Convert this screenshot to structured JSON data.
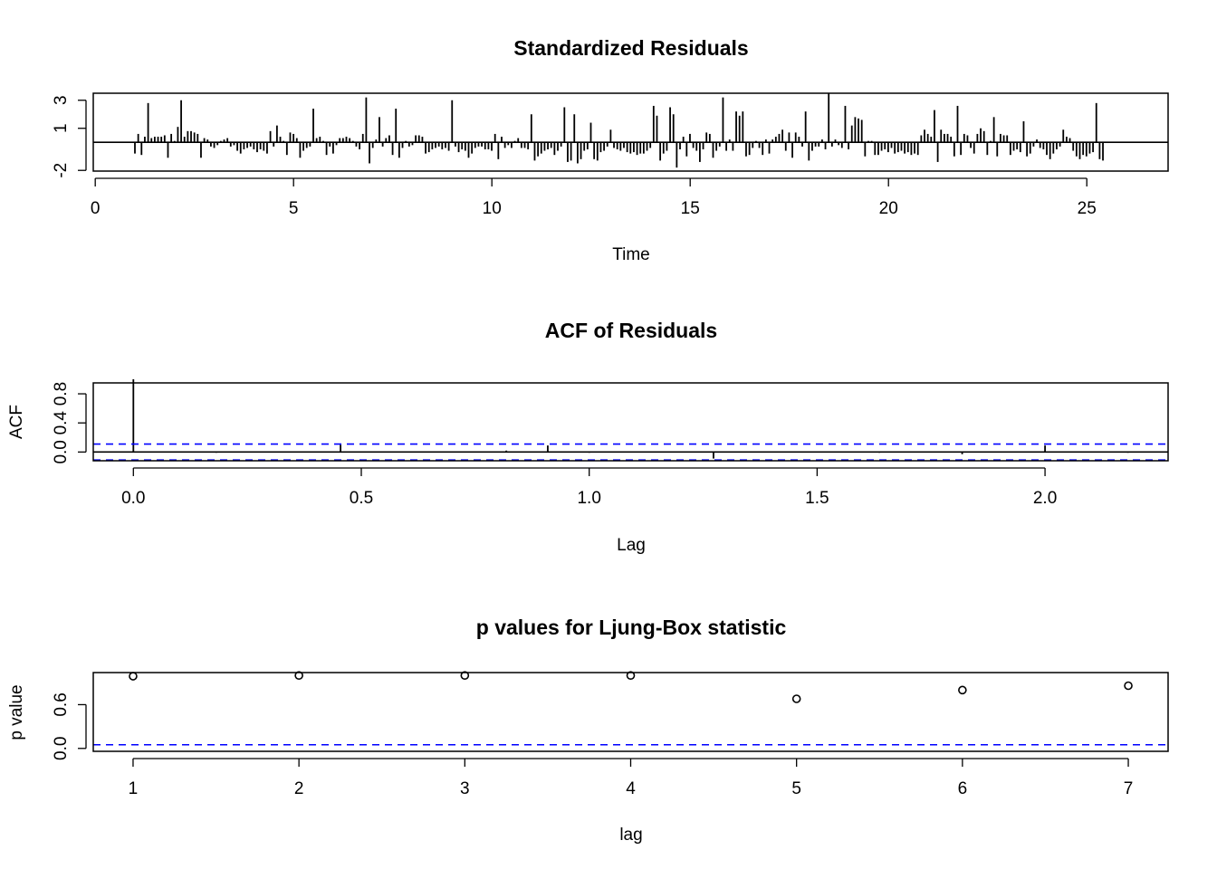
{
  "chart_data": [
    {
      "type": "bar",
      "title": "Standardized Residuals",
      "xlabel": "Time",
      "ylabel": "",
      "xlim": [
        -0.05,
        27.05
      ],
      "ylim": [
        -2.05,
        3.5
      ],
      "x_ticks": [
        0,
        5,
        10,
        15,
        20,
        25
      ],
      "x_tick_labels": [
        "0",
        "5",
        "10",
        "15",
        "20",
        "25"
      ],
      "y_ticks": [
        -2,
        1,
        3
      ],
      "y_tick_labels": [
        "-2",
        "1",
        "3"
      ],
      "baseline": 0,
      "color": "#000000",
      "start": 1.0,
      "step": 0.0833,
      "values": [
        -0.8,
        0.6,
        -0.9,
        0.4,
        2.8,
        0.3,
        0.4,
        0.4,
        0.4,
        0.5,
        -1.1,
        0.6,
        0.1,
        1.1,
        3.0,
        0.4,
        0.8,
        0.8,
        0.7,
        0.6,
        -1.1,
        0.3,
        0.2,
        -0.3,
        -0.4,
        -0.2,
        0.1,
        0.2,
        0.3,
        -0.3,
        -0.2,
        -0.6,
        -0.8,
        -0.5,
        -0.4,
        -0.3,
        -0.5,
        -0.7,
        -0.5,
        -0.6,
        -0.8,
        0.8,
        -0.3,
        1.2,
        0.4,
        0.1,
        -0.9,
        0.7,
        0.6,
        0.3,
        -1.1,
        -0.6,
        -0.4,
        -0.3,
        2.4,
        0.3,
        0.4,
        0.1,
        -0.9,
        -0.3,
        -0.8,
        -0.2,
        0.3,
        0.3,
        0.4,
        0.3,
        0.1,
        -0.3,
        -0.5,
        0.6,
        3.2,
        -1.5,
        -0.4,
        0.2,
        1.8,
        -0.3,
        0.3,
        0.5,
        -0.9,
        2.4,
        -1.1,
        -0.4,
        0.1,
        -0.3,
        -0.2,
        0.5,
        0.5,
        0.4,
        -0.8,
        -0.7,
        -0.5,
        -0.4,
        -0.3,
        -0.5,
        -0.4,
        -0.6,
        3.0,
        -0.3,
        -0.7,
        -0.5,
        -0.6,
        -1.1,
        -0.8,
        -0.4,
        -0.3,
        -0.3,
        -0.5,
        -0.5,
        -0.6,
        0.6,
        -1.2,
        0.4,
        -0.4,
        -0.2,
        -0.4,
        0.1,
        0.3,
        -0.4,
        -0.4,
        -0.5,
        2.0,
        -1.3,
        -1.0,
        -0.8,
        -0.6,
        -0.5,
        -0.4,
        -0.9,
        -0.6,
        -0.3,
        2.5,
        -1.4,
        -1.3,
        2.0,
        -1.5,
        -1.2,
        -0.6,
        -0.5,
        1.4,
        -1.2,
        -1.3,
        -0.7,
        -0.6,
        -0.3,
        0.9,
        -0.4,
        -0.5,
        -0.6,
        -0.4,
        -0.7,
        -0.8,
        -0.7,
        -0.9,
        -0.8,
        -0.8,
        -0.6,
        -0.4,
        2.6,
        1.9,
        -1.3,
        -0.8,
        -0.6,
        2.5,
        2.0,
        -1.8,
        -0.5,
        0.4,
        -1.0,
        0.6,
        -0.4,
        -0.6,
        -1.4,
        -0.5,
        0.7,
        0.6,
        -1.1,
        -0.6,
        -0.3,
        3.2,
        -0.6,
        0.2,
        -0.6,
        2.2,
        1.9,
        2.2,
        -1.0,
        -0.9,
        -0.4,
        0.1,
        -0.4,
        -0.9,
        0.2,
        -0.8,
        0.2,
        0.4,
        0.6,
        0.9,
        -0.6,
        0.7,
        -1.1,
        0.7,
        0.4,
        -0.3,
        2.2,
        -1.3,
        -0.6,
        -0.3,
        -0.3,
        0.2,
        -0.5,
        3.5,
        -0.3,
        0.2,
        -0.2,
        -0.4,
        2.6,
        -0.5,
        1.2,
        1.8,
        1.7,
        1.6,
        -1.0,
        0.1,
        0.1,
        -0.9,
        -0.9,
        -0.6,
        -0.5,
        -0.7,
        -0.4,
        -0.8,
        -0.7,
        -0.6,
        -0.8,
        -0.7,
        -0.9,
        -0.8,
        -0.9,
        0.5,
        0.9,
        0.6,
        0.4,
        2.3,
        -1.4,
        0.9,
        0.6,
        0.6,
        0.4,
        -1.0,
        2.6,
        -0.9,
        0.6,
        0.5,
        -0.4,
        -0.8,
        0.6,
        1.0,
        0.8,
        -0.9,
        0.1,
        1.8,
        -1.0,
        0.6,
        0.5,
        0.5,
        -0.9,
        -0.6,
        -0.5,
        -0.7,
        1.5,
        -1.0,
        -0.8,
        -0.3,
        0.2,
        -0.4,
        -0.5,
        -0.9,
        -1.2,
        -0.8,
        -0.5,
        -0.3,
        0.9,
        0.4,
        0.3,
        -0.6,
        -1.0,
        -1.2,
        -0.9,
        -1.0,
        -0.8,
        -0.7,
        2.8,
        -1.2,
        -1.3
      ]
    },
    {
      "type": "bar",
      "title": "ACF of Residuals",
      "xlabel": "Lag",
      "ylabel": "ACF",
      "xlim": [
        -0.088,
        2.27
      ],
      "ylim": [
        -0.12,
        0.95
      ],
      "x_ticks": [
        0,
        0.5,
        1,
        1.5,
        2
      ],
      "x_tick_labels": [
        "0.0",
        "0.5",
        "1.0",
        "1.5",
        "2.0"
      ],
      "y_ticks": [
        0,
        0.4,
        0.8
      ],
      "y_tick_labels": [
        "0.0",
        "0.4",
        "0.8"
      ],
      "baseline": 0,
      "color": "#000000",
      "lags": [
        0,
        0.0909,
        0.1818,
        0.2727,
        0.3636,
        0.4545,
        0.5455,
        0.6364,
        0.7273,
        0.8182,
        0.9091,
        1.0,
        1.0909,
        1.1818,
        1.2727,
        1.3636,
        1.4545,
        1.5455,
        1.6364,
        1.7273,
        1.8182,
        1.9091,
        2.0,
        2.0909,
        2.1818
      ],
      "values": [
        1.0,
        0.0,
        -0.01,
        0.0,
        0.01,
        0.1,
        0.0,
        0.01,
        0.0,
        0.02,
        0.09,
        -0.01,
        0.0,
        0.01,
        -0.09,
        0.0,
        0.01,
        0.0,
        -0.01,
        0.01,
        -0.03,
        0.0,
        0.09,
        0.0,
        -0.01
      ],
      "confidence_band": {
        "upper": 0.11,
        "lower": -0.11,
        "color": "#0000ff",
        "style": "dashed"
      }
    },
    {
      "type": "scatter",
      "title": "p values for Ljung-Box statistic",
      "xlabel": "lag",
      "ylabel": "p value",
      "xlim": [
        0.76,
        7.24
      ],
      "ylim": [
        -0.04,
        1.04
      ],
      "x_ticks": [
        1,
        2,
        3,
        4,
        5,
        6,
        7
      ],
      "x_tick_labels": [
        "1",
        "2",
        "3",
        "4",
        "5",
        "6",
        "7"
      ],
      "y_ticks": [
        0,
        0.6
      ],
      "y_tick_labels": [
        "0.0",
        "0.6"
      ],
      "x": [
        1,
        2,
        3,
        4,
        5,
        6,
        7
      ],
      "y": [
        0.99,
        1.0,
        1.0,
        1.0,
        0.68,
        0.8,
        0.86
      ],
      "marker": "open-circle",
      "color": "#000000",
      "reference_line": {
        "y": 0.05,
        "color": "#0000ff",
        "style": "dashed"
      }
    }
  ]
}
